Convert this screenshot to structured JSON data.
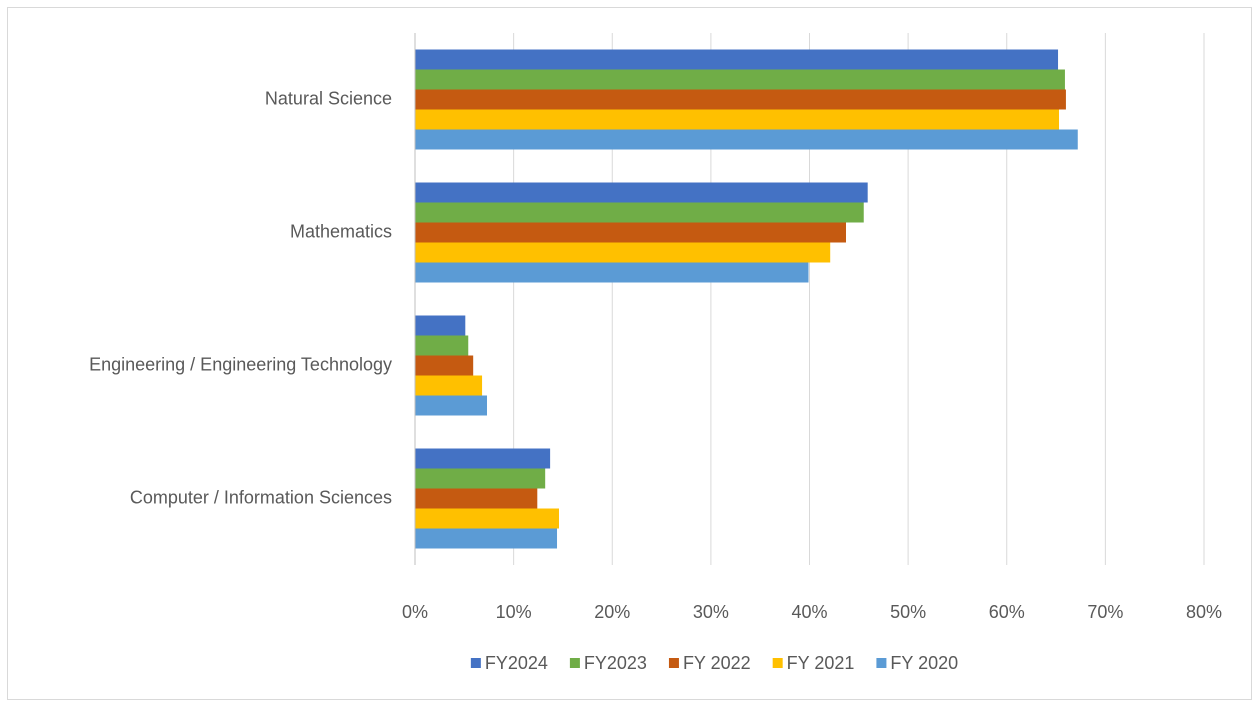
{
  "chart_data": {
    "type": "bar",
    "orientation": "horizontal",
    "categories": [
      "Natural Science",
      "Mathematics",
      "Engineering / Engineering Technology",
      "Computer / Information Sciences"
    ],
    "series": [
      {
        "name": "FY2024",
        "color": "#4472c4",
        "values": [
          65.2,
          45.9,
          5.1,
          13.7
        ]
      },
      {
        "name": "FY2023",
        "color": "#70ad47",
        "values": [
          65.9,
          45.5,
          5.4,
          13.2
        ]
      },
      {
        "name": "FY 2022",
        "color": "#c55a11",
        "values": [
          66.0,
          43.7,
          5.9,
          12.4
        ]
      },
      {
        "name": "FY 2021",
        "color": "#ffc000",
        "values": [
          65.3,
          42.1,
          6.8,
          14.6
        ]
      },
      {
        "name": "FY 2020",
        "color": "#5b9bd5",
        "values": [
          67.2,
          39.9,
          7.3,
          14.4
        ]
      }
    ],
    "xlim": [
      0,
      80
    ],
    "xticks": [
      {
        "value": 0,
        "label": "0%"
      },
      {
        "value": 10,
        "label": "10%"
      },
      {
        "value": 20,
        "label": "20%"
      },
      {
        "value": 30,
        "label": "30%"
      },
      {
        "value": 40,
        "label": "40%"
      },
      {
        "value": 50,
        "label": "50%"
      },
      {
        "value": 60,
        "label": "60%"
      },
      {
        "value": 70,
        "label": "70%"
      },
      {
        "value": 80,
        "label": "80%"
      }
    ],
    "grid": true,
    "legend": "bottom"
  }
}
